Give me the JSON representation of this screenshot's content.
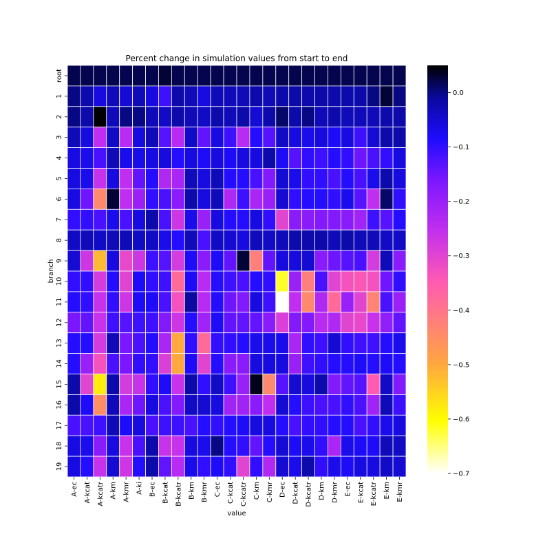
{
  "chart_data": {
    "type": "heatmap",
    "title": "Percent change in simulation values from start to end",
    "xlabel": "value",
    "ylabel": "branch",
    "x_categories": [
      "A-ec",
      "A-kcat",
      "A-kcatr",
      "A-km",
      "A-kmr",
      "A-ki",
      "B-ec",
      "B-kcat",
      "B-kcatr",
      "B-km",
      "B-kmr",
      "C-ec",
      "C-kcat",
      "C-kcatr",
      "C-km",
      "C-kmr",
      "D-ec",
      "D-kcat",
      "D-kcatr",
      "D-km",
      "D-kmr",
      "E-ec",
      "E-kcat",
      "E-kcatr",
      "E-km",
      "E-kmr"
    ],
    "y_categories": [
      "root",
      "1",
      "2",
      "3",
      "4",
      "5",
      "6",
      "7",
      "8",
      "9",
      "10",
      "11",
      "12",
      "13",
      "14",
      "15",
      "16",
      "17",
      "18",
      "19"
    ],
    "colormap": "gnuplot2",
    "vmin": -0.7,
    "vmax": 0.05,
    "colorbar_ticks": [
      "0.0",
      "−0.1",
      "−0.2",
      "−0.3",
      "−0.4",
      "−0.5",
      "−0.6",
      "−0.7"
    ],
    "colorbar_tick_values": [
      0.0,
      -0.1,
      -0.2,
      -0.3,
      -0.4,
      -0.5,
      -0.6,
      -0.7
    ],
    "values": [
      [
        0.02,
        0.02,
        0.02,
        0.02,
        0.02,
        0.02,
        0.02,
        0.03,
        0.02,
        0.02,
        0.02,
        0.02,
        0.02,
        0.02,
        0.02,
        0.02,
        0.02,
        0.02,
        0.02,
        0.02,
        0.02,
        0.02,
        0.02,
        0.02,
        0.02,
        0.02
      ],
      [
        0.0,
        -0.02,
        -0.06,
        -0.03,
        -0.05,
        -0.03,
        -0.06,
        -0.11,
        -0.02,
        -0.03,
        -0.06,
        -0.03,
        -0.03,
        -0.03,
        -0.02,
        -0.03,
        -0.02,
        -0.02,
        -0.02,
        -0.02,
        -0.02,
        -0.02,
        -0.02,
        0.0,
        0.03,
        0.0
      ],
      [
        0.0,
        -0.02,
        0.05,
        -0.03,
        0.0,
        0.0,
        -0.03,
        -0.04,
        -0.02,
        -0.03,
        -0.04,
        -0.02,
        -0.03,
        -0.02,
        -0.05,
        -0.02,
        0.01,
        -0.02,
        0.0,
        -0.03,
        -0.02,
        -0.03,
        -0.03,
        -0.03,
        -0.02,
        -0.02
      ],
      [
        -0.03,
        -0.06,
        -0.25,
        -0.04,
        -0.24,
        -0.06,
        -0.03,
        -0.13,
        -0.24,
        -0.04,
        -0.14,
        -0.06,
        -0.11,
        -0.24,
        -0.09,
        -0.13,
        -0.04,
        -0.06,
        -0.07,
        -0.06,
        -0.08,
        -0.06,
        -0.11,
        -0.05,
        -0.02,
        -0.02
      ],
      [
        -0.06,
        -0.07,
        -0.12,
        -0.03,
        -0.07,
        -0.07,
        -0.06,
        -0.06,
        -0.09,
        -0.06,
        -0.08,
        -0.06,
        -0.08,
        -0.06,
        -0.06,
        -0.02,
        -0.08,
        -0.13,
        -0.1,
        -0.11,
        -0.09,
        -0.1,
        -0.15,
        -0.12,
        -0.1,
        -0.06
      ],
      [
        -0.06,
        -0.07,
        -0.26,
        -0.06,
        -0.25,
        -0.14,
        -0.09,
        -0.23,
        -0.22,
        -0.03,
        -0.06,
        -0.03,
        -0.09,
        -0.09,
        -0.12,
        -0.17,
        -0.05,
        -0.07,
        -0.1,
        -0.1,
        -0.12,
        -0.09,
        -0.12,
        -0.07,
        -0.02,
        -0.06
      ],
      [
        -0.06,
        -0.15,
        -0.44,
        0.03,
        -0.25,
        -0.2,
        -0.1,
        -0.12,
        -0.18,
        -0.02,
        -0.06,
        -0.03,
        -0.23,
        -0.11,
        -0.22,
        -0.2,
        -0.05,
        -0.1,
        -0.09,
        -0.09,
        -0.1,
        -0.07,
        -0.13,
        -0.25,
        0.01,
        -0.1
      ],
      [
        -0.1,
        -0.1,
        -0.12,
        -0.07,
        -0.12,
        -0.06,
        -0.02,
        -0.12,
        -0.27,
        -0.07,
        -0.2,
        -0.06,
        -0.09,
        -0.09,
        -0.06,
        -0.1,
        -0.3,
        -0.18,
        -0.18,
        -0.17,
        -0.17,
        -0.18,
        -0.21,
        -0.11,
        -0.13,
        -0.09
      ],
      [
        -0.04,
        -0.03,
        -0.04,
        -0.03,
        -0.03,
        -0.04,
        -0.04,
        -0.07,
        -0.09,
        -0.03,
        -0.12,
        -0.04,
        -0.05,
        -0.06,
        -0.03,
        -0.04,
        -0.03,
        -0.02,
        -0.02,
        -0.02,
        -0.03,
        -0.02,
        -0.03,
        -0.03,
        -0.04,
        -0.04
      ],
      [
        -0.05,
        -0.27,
        -0.52,
        -0.06,
        -0.31,
        -0.27,
        -0.11,
        -0.13,
        -0.28,
        -0.08,
        -0.18,
        -0.08,
        -0.14,
        0.03,
        -0.42,
        -0.14,
        -0.06,
        -0.06,
        -0.05,
        -0.18,
        -0.15,
        -0.13,
        -0.12,
        -0.28,
        -0.03,
        -0.18
      ],
      [
        -0.1,
        -0.1,
        -0.28,
        -0.09,
        -0.3,
        -0.08,
        -0.1,
        -0.11,
        -0.38,
        -0.08,
        -0.24,
        -0.09,
        -0.11,
        -0.12,
        -0.09,
        -0.1,
        -0.62,
        -0.2,
        -0.42,
        -0.12,
        -0.3,
        -0.33,
        -0.34,
        -0.33,
        -0.15,
        -0.1
      ],
      [
        -0.09,
        -0.1,
        -0.26,
        -0.1,
        -0.27,
        -0.08,
        -0.08,
        -0.12,
        -0.33,
        -0.01,
        -0.24,
        -0.09,
        -0.15,
        -0.17,
        -0.06,
        -0.11,
        -0.7,
        -0.25,
        -0.44,
        -0.23,
        -0.38,
        -0.2,
        -0.3,
        -0.43,
        -0.12,
        -0.2
      ],
      [
        -0.16,
        -0.14,
        -0.26,
        -0.11,
        -0.13,
        -0.11,
        -0.11,
        -0.17,
        -0.27,
        -0.09,
        -0.21,
        -0.08,
        -0.14,
        -0.14,
        -0.14,
        -0.18,
        -0.29,
        -0.17,
        -0.17,
        -0.24,
        -0.23,
        -0.3,
        -0.31,
        -0.26,
        -0.19,
        -0.14
      ],
      [
        -0.09,
        -0.09,
        -0.28,
        -0.03,
        -0.16,
        -0.12,
        -0.09,
        -0.22,
        -0.5,
        -0.1,
        -0.38,
        -0.1,
        -0.1,
        -0.09,
        -0.07,
        -0.07,
        -0.07,
        -0.22,
        -0.1,
        -0.11,
        -0.05,
        -0.1,
        -0.11,
        -0.11,
        -0.09,
        -0.07
      ],
      [
        -0.09,
        -0.2,
        -0.33,
        -0.12,
        -0.16,
        -0.1,
        -0.1,
        -0.29,
        -0.5,
        -0.08,
        -0.3,
        -0.09,
        -0.18,
        -0.18,
        -0.06,
        -0.06,
        -0.06,
        -0.2,
        -0.11,
        -0.1,
        -0.09,
        -0.09,
        -0.08,
        -0.09,
        -0.08,
        -0.09
      ],
      [
        -0.02,
        -0.3,
        -0.58,
        -0.02,
        -0.28,
        -0.26,
        -0.1,
        -0.08,
        -0.26,
        -0.02,
        -0.1,
        -0.04,
        -0.11,
        -0.2,
        0.04,
        -0.44,
        -0.13,
        -0.05,
        -0.06,
        -0.02,
        -0.17,
        -0.14,
        -0.13,
        -0.35,
        -0.04,
        -0.17
      ],
      [
        -0.02,
        -0.08,
        -0.45,
        -0.03,
        -0.22,
        -0.15,
        -0.06,
        -0.12,
        -0.17,
        -0.04,
        -0.05,
        -0.06,
        -0.21,
        -0.21,
        -0.18,
        -0.25,
        -0.05,
        -0.09,
        -0.11,
        -0.12,
        -0.12,
        -0.1,
        -0.12,
        -0.21,
        -0.03,
        -0.11
      ],
      [
        -0.12,
        -0.12,
        -0.11,
        -0.03,
        -0.08,
        -0.06,
        -0.12,
        -0.11,
        -0.11,
        -0.12,
        -0.09,
        -0.1,
        -0.09,
        -0.08,
        -0.06,
        -0.06,
        -0.09,
        -0.12,
        -0.1,
        -0.1,
        -0.09,
        -0.09,
        -0.12,
        -0.1,
        -0.07,
        -0.06
      ],
      [
        -0.06,
        -0.07,
        -0.18,
        -0.06,
        -0.26,
        -0.12,
        -0.02,
        -0.26,
        -0.26,
        -0.06,
        -0.07,
        0.0,
        -0.09,
        -0.1,
        -0.14,
        -0.09,
        -0.05,
        -0.08,
        -0.07,
        -0.1,
        -0.22,
        -0.07,
        -0.08,
        -0.08,
        -0.03,
        -0.04
      ],
      [
        -0.06,
        -0.09,
        -0.26,
        -0.05,
        -0.27,
        -0.09,
        -0.02,
        -0.14,
        -0.24,
        -0.07,
        -0.1,
        -0.08,
        -0.1,
        -0.3,
        -0.1,
        -0.23,
        -0.05,
        -0.07,
        -0.02,
        -0.1,
        -0.07,
        -0.08,
        -0.06,
        -0.06,
        -0.04,
        -0.05
      ]
    ]
  }
}
